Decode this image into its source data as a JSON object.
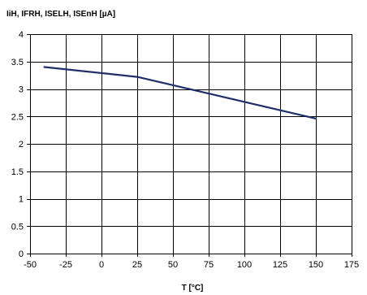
{
  "chart_data": {
    "type": "line",
    "title": "",
    "ylabel": "IiH, IFRH, ISELH, ISEnH [µA]",
    "xlabel": "T [°C]",
    "xlim": [
      -50,
      175
    ],
    "ylim": [
      0,
      4
    ],
    "x_ticks": [
      -50,
      -25,
      0,
      25,
      50,
      75,
      100,
      125,
      150,
      175
    ],
    "x_tick_labels": [
      "-50",
      "-25",
      "0",
      "25",
      "50",
      "75",
      "100",
      "125",
      "150",
      "175"
    ],
    "y_ticks": [
      0,
      0.5,
      1,
      1.5,
      2,
      2.5,
      3,
      3.5,
      4
    ],
    "y_tick_labels": [
      "0",
      "0.5",
      "1",
      "1.5",
      "2",
      "2.5",
      "3",
      "3.5",
      "4"
    ],
    "grid": true,
    "series": [
      {
        "x": [
          -40,
          25,
          150
        ],
        "y": [
          3.4,
          3.22,
          2.46
        ],
        "color": "#1f2f6b"
      }
    ]
  }
}
